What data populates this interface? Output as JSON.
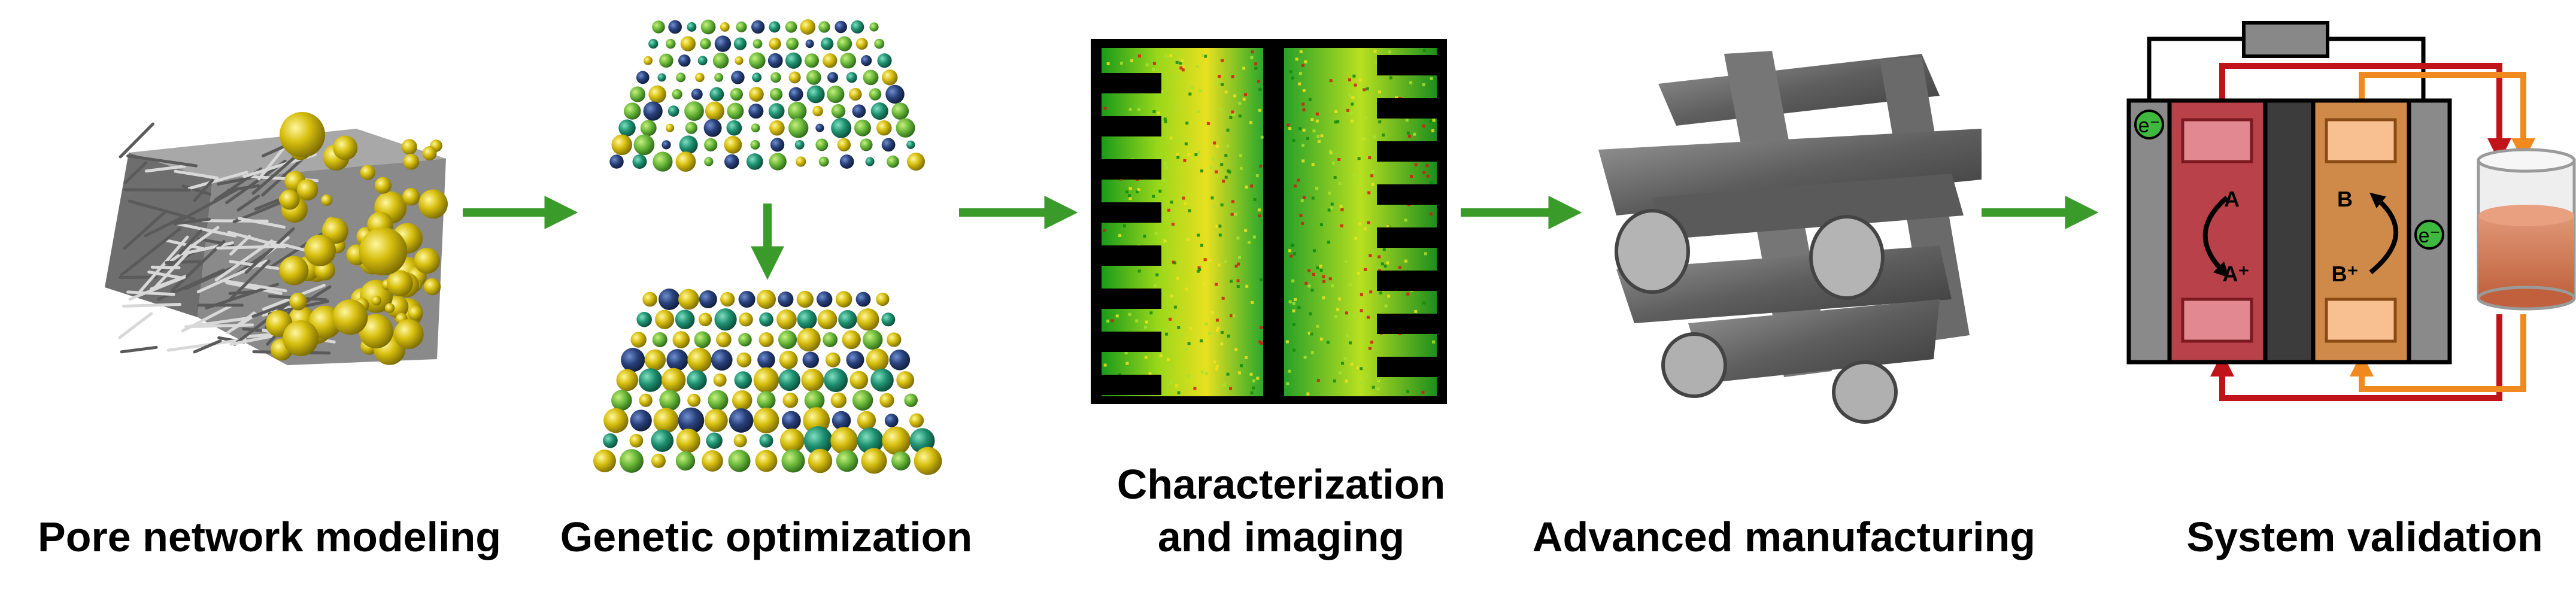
{
  "stages": [
    {
      "label": "Pore network modeling"
    },
    {
      "label": "Genetic optimization"
    },
    {
      "label_line1": "Characterization",
      "label_line2": "and imaging"
    },
    {
      "label": "Advanced manufacturing"
    },
    {
      "label": "System validation"
    }
  ],
  "cell": {
    "electron": "e⁻",
    "species_a": "A",
    "species_a_ion": "A⁺",
    "species_b": "B",
    "species_b_ion": "B⁺"
  },
  "colors": {
    "arrow_green": "#3a9a2a",
    "cell_red": "#b8414a",
    "cell_orange": "#cf8a4a",
    "wire_red": "#c0141a",
    "wire_orange": "#f08a1e",
    "sphere_yellow": "#c8b400",
    "sphere_teal": "#1e8f73"
  }
}
